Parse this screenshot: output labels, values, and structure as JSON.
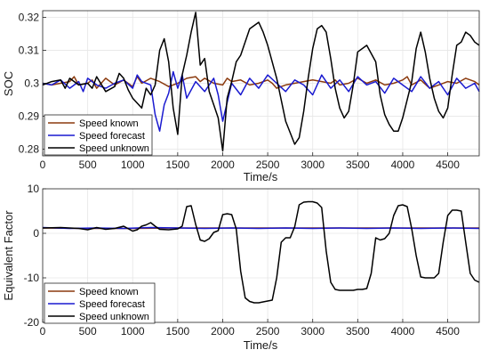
{
  "chart_data": [
    {
      "type": "line",
      "xlabel": "Time/s",
      "ylabel": "SOC",
      "xlim": [
        0,
        4850
      ],
      "ylim": [
        0.278,
        0.322
      ],
      "xticks": [
        0,
        500,
        1000,
        1500,
        2000,
        2500,
        3000,
        3500,
        4000,
        4500
      ],
      "yticks": [
        0.28,
        0.29,
        0.3,
        0.31,
        0.32
      ],
      "ytick_labels": [
        "0.28",
        "0.29",
        "0.3",
        "0.31",
        "0.32"
      ],
      "grid": true,
      "legend": "bottom-left",
      "series": [
        {
          "name": "Speed known",
          "color": "#8b3a0e",
          "x": [
            0,
            100,
            200,
            300,
            350,
            400,
            500,
            550,
            600,
            700,
            800,
            900,
            1000,
            1050,
            1100,
            1200,
            1300,
            1400,
            1500,
            1600,
            1700,
            1750,
            1800,
            1900,
            2000,
            2050,
            2100,
            2200,
            2300,
            2400,
            2500,
            2550,
            2600,
            2700,
            2800,
            2900,
            3000,
            3100,
            3200,
            3250,
            3300,
            3400,
            3500,
            3600,
            3700,
            3800,
            3900,
            4000,
            4050,
            4100,
            4200,
            4300,
            4400,
            4500,
            4600,
            4700,
            4800,
            4850
          ],
          "y": [
            0.3,
            0.2995,
            0.3,
            0.3005,
            0.302,
            0.2995,
            0.3,
            0.301,
            0.2985,
            0.3015,
            0.2995,
            0.301,
            0.299,
            0.302,
            0.3,
            0.3015,
            0.3005,
            0.299,
            0.3,
            0.3015,
            0.302,
            0.3005,
            0.3015,
            0.3,
            0.2995,
            0.3015,
            0.3005,
            0.301,
            0.2995,
            0.3,
            0.301,
            0.3,
            0.2985,
            0.2995,
            0.3,
            0.3005,
            0.301,
            0.3005,
            0.3,
            0.301,
            0.2995,
            0.3,
            0.3015,
            0.3,
            0.301,
            0.2995,
            0.3,
            0.301,
            0.302,
            0.2995,
            0.301,
            0.2985,
            0.2995,
            0.3005,
            0.3,
            0.3015,
            0.3005,
            0.2995
          ]
        },
        {
          "name": "Speed forecast",
          "color": "#1a1ad0",
          "x": [
            0,
            100,
            200,
            300,
            400,
            450,
            500,
            600,
            700,
            800,
            900,
            1000,
            1050,
            1100,
            1200,
            1250,
            1300,
            1350,
            1400,
            1450,
            1500,
            1550,
            1600,
            1700,
            1800,
            1900,
            1950,
            2000,
            2100,
            2200,
            2300,
            2400,
            2500,
            2600,
            2700,
            2800,
            2900,
            3000,
            3100,
            3200,
            3300,
            3400,
            3500,
            3600,
            3700,
            3800,
            3900,
            4000,
            4100,
            4200,
            4300,
            4400,
            4500,
            4600,
            4700,
            4800,
            4850
          ],
          "y": [
            0.3,
            0.2995,
            0.301,
            0.2985,
            0.3005,
            0.2975,
            0.3015,
            0.2995,
            0.2985,
            0.3,
            0.301,
            0.2985,
            0.3025,
            0.3005,
            0.2995,
            0.2905,
            0.2855,
            0.2935,
            0.297,
            0.3035,
            0.2985,
            0.3025,
            0.2955,
            0.3005,
            0.2975,
            0.3015,
            0.2965,
            0.2885,
            0.3,
            0.2965,
            0.3015,
            0.2985,
            0.3025,
            0.3,
            0.2975,
            0.301,
            0.2995,
            0.2965,
            0.3025,
            0.2985,
            0.301,
            0.2975,
            0.302,
            0.2995,
            0.3005,
            0.297,
            0.3015,
            0.2995,
            0.2975,
            0.302,
            0.2985,
            0.3005,
            0.2965,
            0.3015,
            0.2985,
            0.3,
            0.2975
          ]
        },
        {
          "name": "Speed unknown",
          "color": "#000000",
          "x": [
            0,
            100,
            200,
            250,
            300,
            400,
            500,
            550,
            600,
            700,
            800,
            850,
            900,
            950,
            1000,
            1100,
            1150,
            1200,
            1250,
            1300,
            1350,
            1400,
            1450,
            1500,
            1550,
            1600,
            1650,
            1700,
            1750,
            1800,
            1850,
            1900,
            1950,
            2000,
            2050,
            2100,
            2150,
            2200,
            2300,
            2400,
            2450,
            2500,
            2600,
            2700,
            2800,
            2850,
            2900,
            2950,
            3000,
            3050,
            3100,
            3150,
            3200,
            3250,
            3300,
            3350,
            3400,
            3450,
            3500,
            3600,
            3700,
            3750,
            3800,
            3850,
            3900,
            3950,
            4000,
            4100,
            4150,
            4200,
            4250,
            4300,
            4350,
            4400,
            4450,
            4500,
            4550,
            4600,
            4650,
            4700,
            4750,
            4800,
            4850
          ],
          "y": [
            0.2995,
            0.3005,
            0.301,
            0.2985,
            0.3015,
            0.2995,
            0.3,
            0.2985,
            0.302,
            0.2975,
            0.299,
            0.303,
            0.3015,
            0.298,
            0.2955,
            0.2925,
            0.2985,
            0.2965,
            0.2995,
            0.31,
            0.3135,
            0.3065,
            0.2925,
            0.2845,
            0.3025,
            0.3085,
            0.3155,
            0.3215,
            0.3055,
            0.3075,
            0.2975,
            0.2935,
            0.2895,
            0.2795,
            0.2955,
            0.3005,
            0.3065,
            0.3085,
            0.3165,
            0.3185,
            0.3155,
            0.3115,
            0.3015,
            0.2885,
            0.2815,
            0.2835,
            0.2915,
            0.3015,
            0.3105,
            0.3165,
            0.3175,
            0.3155,
            0.3075,
            0.2985,
            0.2925,
            0.2895,
            0.2915,
            0.2995,
            0.3095,
            0.3115,
            0.3065,
            0.2965,
            0.2905,
            0.2875,
            0.2855,
            0.2855,
            0.2895,
            0.3005,
            0.3105,
            0.3155,
            0.3095,
            0.3015,
            0.2955,
            0.2915,
            0.2895,
            0.2925,
            0.3025,
            0.3115,
            0.3125,
            0.3155,
            0.3145,
            0.3125,
            0.3115
          ]
        }
      ]
    },
    {
      "type": "line",
      "xlabel": "Time/s",
      "ylabel": "Equivalent Factor",
      "xlim": [
        0,
        4850
      ],
      "ylim": [
        -20,
        10
      ],
      "xticks": [
        0,
        500,
        1000,
        1500,
        2000,
        2500,
        3000,
        3500,
        4000,
        4500
      ],
      "yticks": [
        -20,
        -10,
        0,
        10
      ],
      "ytick_labels": [
        "-20",
        "-10",
        "0",
        "10"
      ],
      "grid": true,
      "legend": "bottom-left",
      "series": [
        {
          "name": "Speed known",
          "color": "#8b3a0e",
          "x": [
            0,
            500,
            1000,
            1500,
            2000,
            2500,
            3000,
            3500,
            4000,
            4500,
            4850
          ],
          "y": [
            1.2,
            1.1,
            1.1,
            1.2,
            1.2,
            1.2,
            1.2,
            1.2,
            1.2,
            1.2,
            1.2
          ]
        },
        {
          "name": "Speed forecast",
          "color": "#1a1ad0",
          "x": [
            0,
            300,
            600,
            900,
            1200,
            1500,
            1800,
            2100,
            2400,
            2700,
            3000,
            3300,
            3600,
            3900,
            4200,
            4500,
            4850
          ],
          "y": [
            1.3,
            1.1,
            1.2,
            1.1,
            1.3,
            1.2,
            1.1,
            1.2,
            1.1,
            1.2,
            1.1,
            1.2,
            1.1,
            1.2,
            1.1,
            1.2,
            1.1
          ]
        },
        {
          "name": "Speed unknown",
          "color": "#000000",
          "x": [
            0,
            200,
            400,
            500,
            600,
            700,
            800,
            900,
            1000,
            1050,
            1100,
            1150,
            1200,
            1250,
            1300,
            1400,
            1500,
            1550,
            1600,
            1650,
            1700,
            1750,
            1800,
            1850,
            1900,
            1950,
            2000,
            2050,
            2100,
            2150,
            2200,
            2250,
            2300,
            2350,
            2400,
            2450,
            2500,
            2550,
            2600,
            2650,
            2700,
            2750,
            2800,
            2850,
            2900,
            2950,
            3000,
            3050,
            3100,
            3150,
            3200,
            3250,
            3300,
            3350,
            3400,
            3450,
            3500,
            3550,
            3600,
            3650,
            3700,
            3750,
            3800,
            3850,
            3900,
            3950,
            4000,
            4050,
            4100,
            4150,
            4200,
            4250,
            4300,
            4350,
            4400,
            4450,
            4500,
            4550,
            4600,
            4650,
            4700,
            4750,
            4800,
            4850
          ],
          "y": [
            1.2,
            1.3,
            1.1,
            0.8,
            1.3,
            0.9,
            1.1,
            1.6,
            0.5,
            0.8,
            1.6,
            1.9,
            2.4,
            1.6,
            0.9,
            0.8,
            1.0,
            1.6,
            6.0,
            6.2,
            2.0,
            -1.5,
            -1.8,
            -1.2,
            0.2,
            0.6,
            4.2,
            4.4,
            4.2,
            1.0,
            -8.5,
            -14.5,
            -15.3,
            -15.6,
            -15.6,
            -15.4,
            -15.2,
            -15.0,
            -10.0,
            -2.0,
            -1.0,
            -1.0,
            1.5,
            6.4,
            7.0,
            7.1,
            7.1,
            6.8,
            5.8,
            -4.0,
            -11.0,
            -12.6,
            -12.8,
            -12.8,
            -12.8,
            -12.8,
            -12.6,
            -12.6,
            -12.4,
            -9.0,
            -1.0,
            -1.5,
            -1.2,
            0.0,
            4.0,
            6.2,
            6.4,
            6.0,
            1.0,
            -5.0,
            -9.8,
            -10.0,
            -10.0,
            -10.0,
            -9.0,
            -2.0,
            4.0,
            5.2,
            5.2,
            5.0,
            -2.0,
            -9.0,
            -10.5,
            -11.0
          ]
        }
      ]
    }
  ]
}
